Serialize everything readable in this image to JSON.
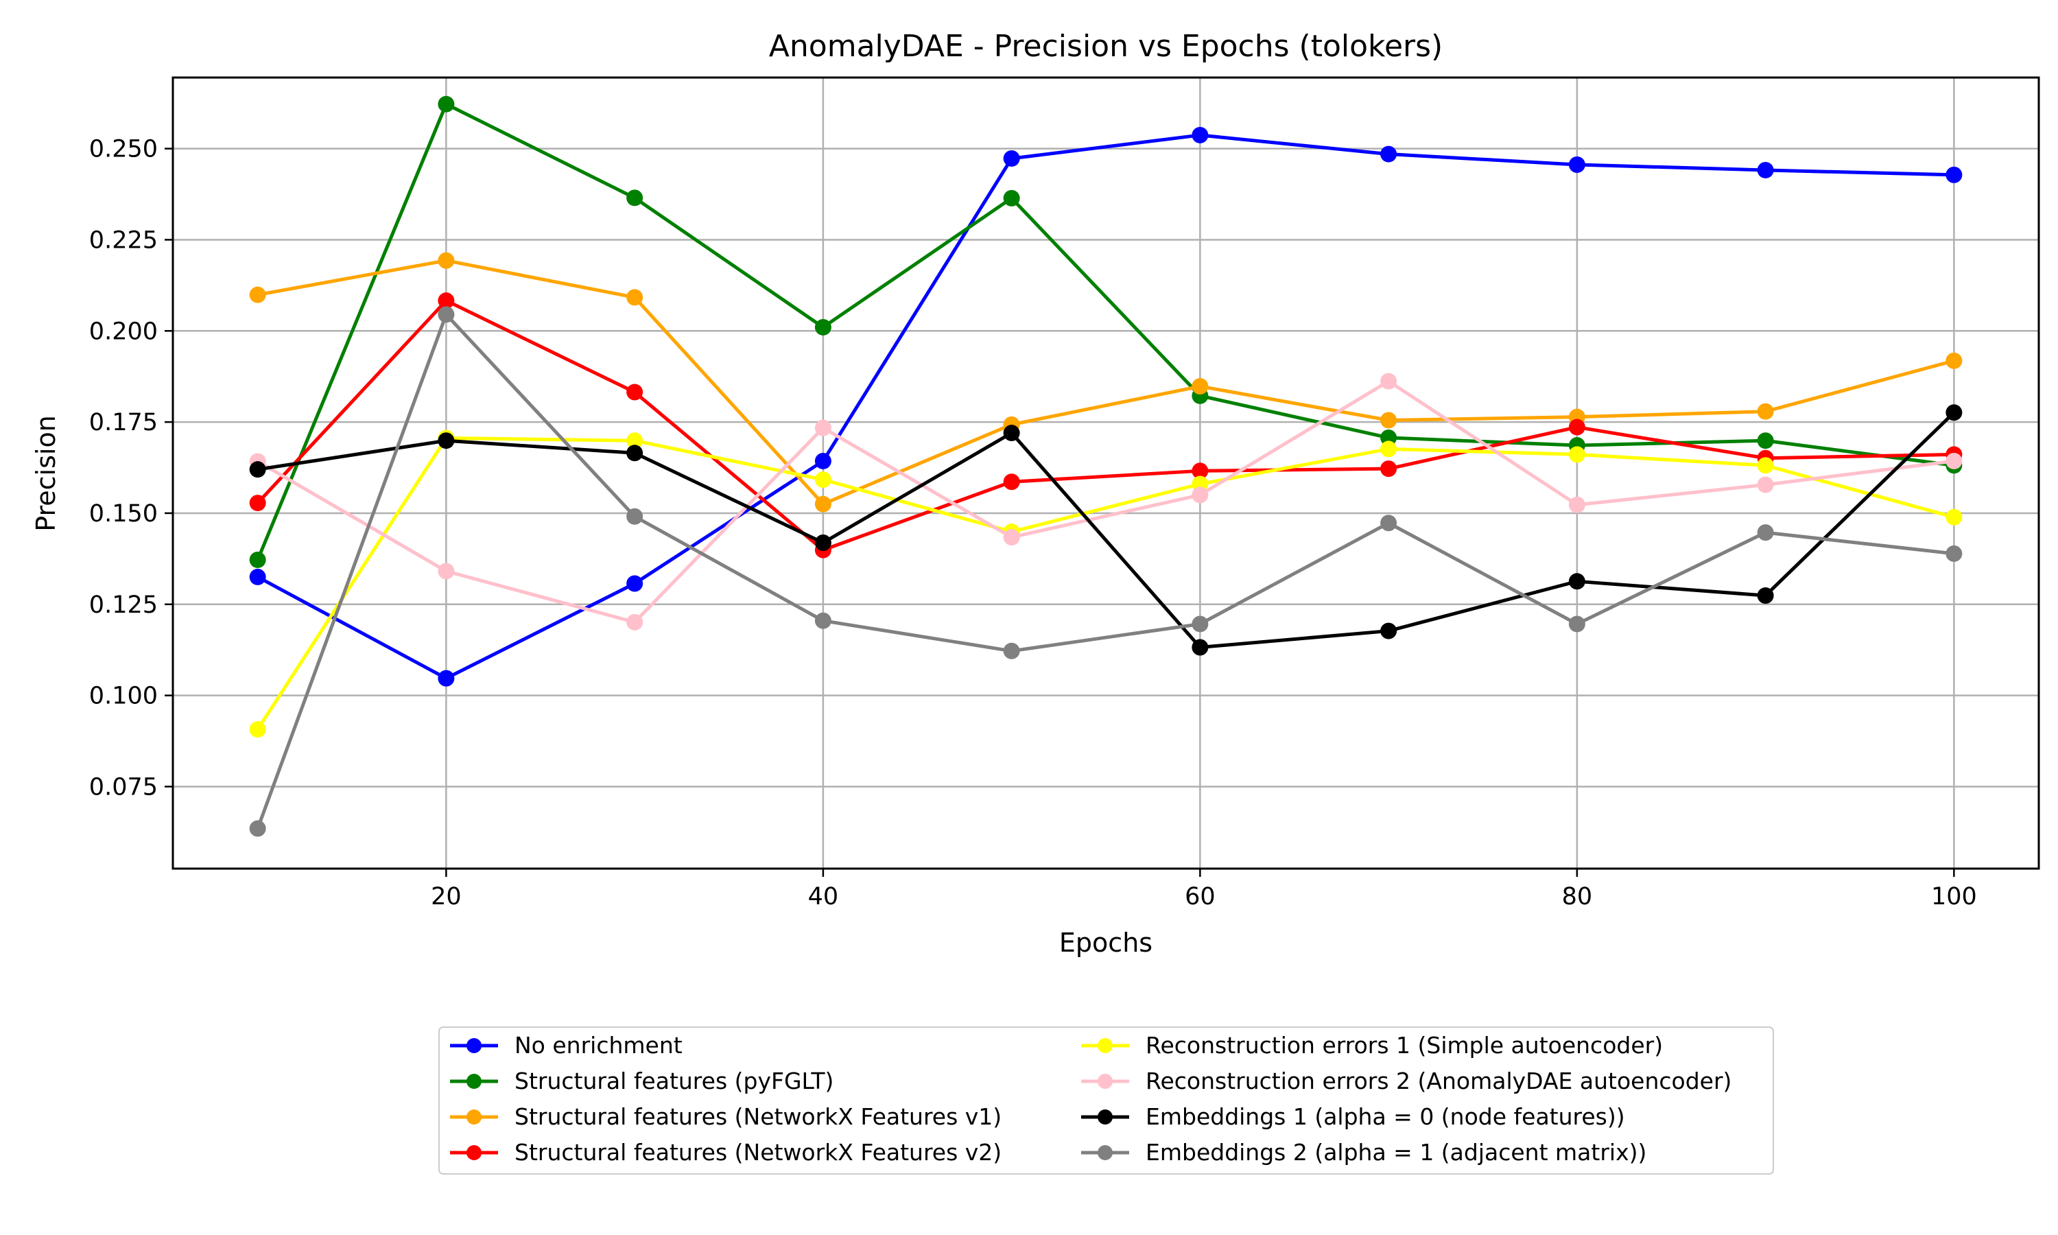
{
  "chart_data": {
    "type": "line",
    "title": "AnomalyDAE - Precision vs Epochs (tolokers)",
    "xlabel": "Epochs",
    "ylabel": "Precision",
    "x": [
      10,
      20,
      30,
      40,
      50,
      60,
      70,
      80,
      90,
      100
    ],
    "xlim": [
      5.5,
      104.5
    ],
    "ylim": [
      0.0525,
      0.2695
    ],
    "x_ticks": [
      20,
      40,
      60,
      80,
      100
    ],
    "x_tick_labels": [
      "20",
      "40",
      "60",
      "80",
      "100"
    ],
    "y_ticks": [
      0.075,
      0.1,
      0.125,
      0.15,
      0.175,
      0.2,
      0.225,
      0.25
    ],
    "y_tick_labels": [
      "0.075",
      "0.100",
      "0.125",
      "0.150",
      "0.175",
      "0.200",
      "0.225",
      "0.250"
    ],
    "grid": true,
    "legend_position": "below the plot, centered, two columns",
    "series": [
      {
        "name": "No enrichment",
        "color": "#0000ff",
        "values": [
          0.1325,
          0.1047,
          0.1307,
          0.1643,
          0.2473,
          0.2537,
          0.2485,
          0.2456,
          0.2441,
          0.2428
        ]
      },
      {
        "name": "Structural features (pyFGLT)",
        "color": "#008000",
        "values": [
          0.1372,
          0.2622,
          0.2365,
          0.201,
          0.2364,
          0.1822,
          0.1707,
          0.1686,
          0.1699,
          0.1631
        ]
      },
      {
        "name": "Structural features (NetworkX Features v1)",
        "color": "#ffa500",
        "values": [
          0.2099,
          0.2193,
          0.2092,
          0.1525,
          0.1743,
          0.1848,
          0.1755,
          0.1764,
          0.1779,
          0.1918
        ]
      },
      {
        "name": "Structural features (NetworkX Features v2)",
        "color": "#ff0000",
        "values": [
          0.1528,
          0.2083,
          0.1832,
          0.1399,
          0.1586,
          0.1616,
          0.1622,
          0.1736,
          0.1651,
          0.1661
        ]
      },
      {
        "name": "Reconstruction errors 1 (Simple autoencoder)",
        "color": "#ffff00",
        "values": [
          0.0907,
          0.1706,
          0.1699,
          0.1592,
          0.1449,
          0.158,
          0.1676,
          0.1661,
          0.1631,
          0.1489
        ]
      },
      {
        "name": "Reconstruction errors 2 (AnomalyDAE autoencoder)",
        "color": "#ffc0cb",
        "values": [
          0.1642,
          0.1341,
          0.1201,
          0.1734,
          0.1434,
          0.155,
          0.1862,
          0.1523,
          0.1578,
          0.1643
        ]
      },
      {
        "name": "Embeddings 1 (alpha = 0 (node features))",
        "color": "#000000",
        "values": [
          0.162,
          0.1699,
          0.1665,
          0.1419,
          0.172,
          0.1132,
          0.1177,
          0.1313,
          0.1274,
          0.1776
        ]
      },
      {
        "name": "Embeddings 2 (alpha = 1 (adjacent matrix))",
        "color": "#808080",
        "values": [
          0.0635,
          0.2045,
          0.1491,
          0.1205,
          0.1122,
          0.1196,
          0.1473,
          0.1196,
          0.1447,
          0.1389
        ]
      }
    ]
  }
}
